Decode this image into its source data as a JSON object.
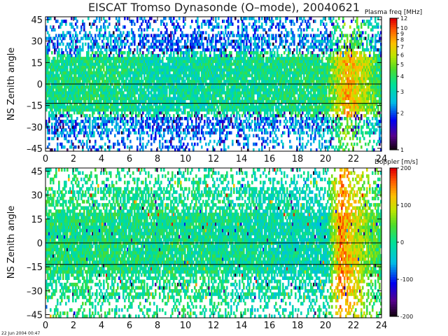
{
  "figure": {
    "title": "EISCAT Tromso Dynasonde (O–mode),  20040621",
    "timestamp": "22 Jun 2004 00:47"
  },
  "chart_data": [
    {
      "type": "heatmap",
      "panel": "top",
      "ylabel": "NS Zenith angle",
      "xlim": [
        0,
        24
      ],
      "ylim": [
        -47,
        47
      ],
      "x_ticks": [
        0,
        2,
        4,
        6,
        8,
        10,
        12,
        14,
        16,
        18,
        20,
        22,
        24
      ],
      "y_ticks": [
        -45,
        -30,
        -15,
        0,
        15,
        30,
        45
      ],
      "reference_lines": [
        0,
        -13.5
      ],
      "colorbar": {
        "title": "Plasma freq [MHz]",
        "scale": "log",
        "range": [
          1,
          12
        ],
        "ticks": [
          1,
          2,
          3,
          4,
          5,
          6,
          7,
          8,
          9,
          10,
          12
        ]
      },
      "approx_value_by_time": [
        {
          "time_h": 0,
          "value": 3.5
        },
        {
          "time_h": 4,
          "value": 3.8
        },
        {
          "time_h": 8,
          "value": 3.2
        },
        {
          "time_h": 14,
          "value": 3.5
        },
        {
          "time_h": 20,
          "value": 3.8
        },
        {
          "time_h": 21.5,
          "value": 8.0
        },
        {
          "time_h": 24,
          "value": 3.5
        }
      ]
    },
    {
      "type": "heatmap",
      "panel": "bottom",
      "ylabel": "NS Zenith angle",
      "xlim": [
        0,
        24
      ],
      "ylim": [
        -47,
        47
      ],
      "x_ticks": [
        0,
        2,
        4,
        6,
        8,
        10,
        12,
        14,
        16,
        18,
        20,
        22,
        24
      ],
      "y_ticks": [
        -45,
        -30,
        -15,
        0,
        15,
        30,
        45
      ],
      "reference_lines": [
        0,
        -13.5
      ],
      "colorbar": {
        "title": "Doppler [m/s]",
        "scale": "linear",
        "range": [
          -200,
          200
        ],
        "ticks": [
          -200,
          -100,
          0,
          100,
          200
        ]
      },
      "approx_value_by_time": [
        {
          "time_h": 0,
          "value": 10
        },
        {
          "time_h": 10,
          "value": 5
        },
        {
          "time_h": 20,
          "value": -20
        },
        {
          "time_h": 21,
          "value": 150
        },
        {
          "time_h": 24,
          "value": 10
        }
      ]
    }
  ]
}
